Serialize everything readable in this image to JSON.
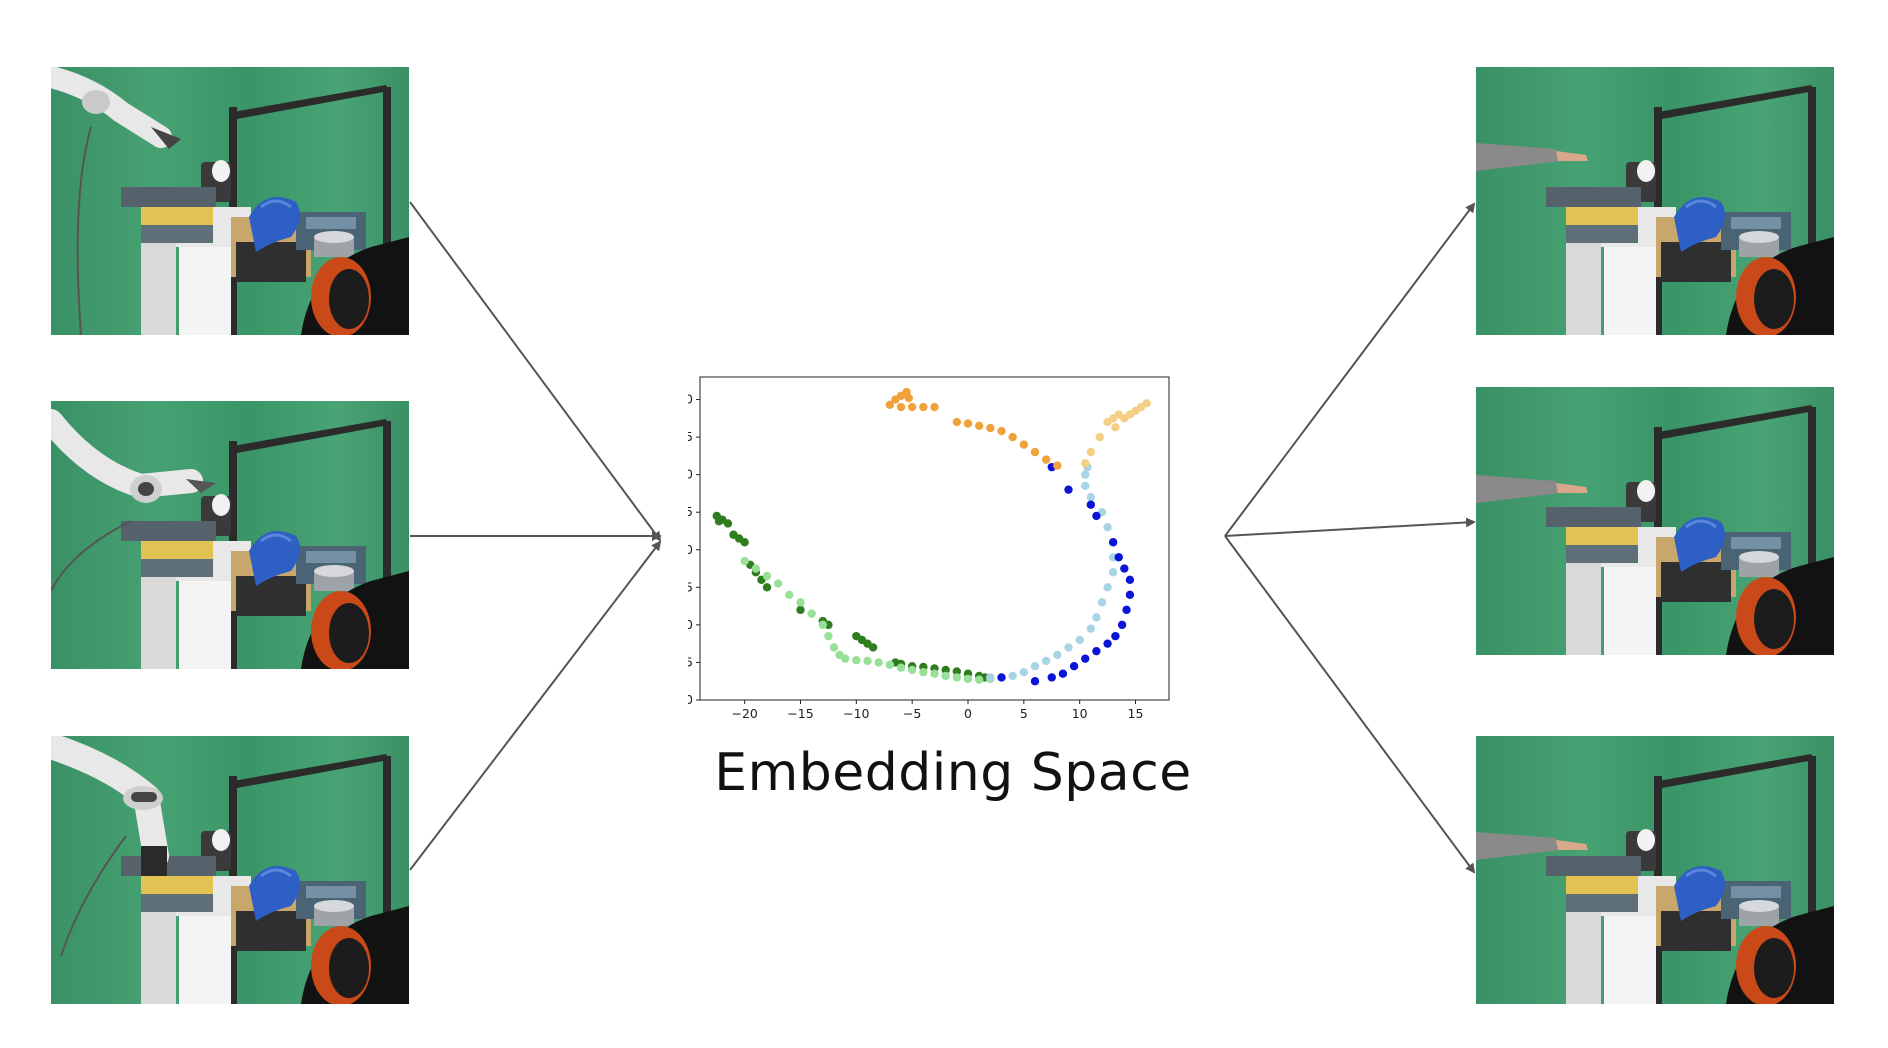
{
  "caption": "Embedding Space",
  "left_panels": [
    {
      "name": "robot-demo-frame-1",
      "agent": "robot-arm"
    },
    {
      "name": "robot-demo-frame-2",
      "agent": "robot-arm"
    },
    {
      "name": "robot-demo-frame-3",
      "agent": "robot-arm"
    }
  ],
  "right_panels": [
    {
      "name": "human-demo-frame-1",
      "agent": "human-arm"
    },
    {
      "name": "human-demo-frame-2",
      "agent": "human-arm"
    },
    {
      "name": "human-demo-frame-3",
      "agent": "human-arm"
    }
  ],
  "colors": {
    "background_green": "#3f9a6c",
    "dark_green": "#2e7d1f",
    "light_green": "#98e098",
    "dark_blue": "#0a14d6",
    "light_blue": "#a8d4e6",
    "orange": "#f0a23a",
    "light_orange": "#f5cf86",
    "arrow": "#555555"
  },
  "chart_data": {
    "type": "scatter",
    "xlim": [
      -24,
      18
    ],
    "ylim": [
      -20,
      23
    ],
    "x_ticks": [
      -20,
      -15,
      -10,
      -5,
      0,
      5,
      10,
      15
    ],
    "y_ticks": [
      20,
      15,
      10,
      5,
      0,
      -5,
      -10,
      -15,
      -20
    ],
    "x_tick_labels": [
      "−20",
      "−15",
      "−10",
      "−5",
      "0",
      "5",
      "10",
      "15"
    ],
    "y_tick_labels": [
      "20",
      "15",
      "10",
      "5",
      "0",
      "−5",
      "−10",
      "−15",
      "−20"
    ],
    "grid": false,
    "series": [
      {
        "color": "#2e7d1f",
        "points": [
          [
            -22.5,
            4.5
          ],
          [
            -22,
            4
          ],
          [
            -21.5,
            3.5
          ],
          [
            -22.3,
            3.8
          ],
          [
            -21,
            2
          ],
          [
            -20.5,
            1.5
          ],
          [
            -20,
            1
          ],
          [
            -19.5,
            -2
          ],
          [
            -19,
            -3
          ],
          [
            -18.5,
            -4
          ],
          [
            -18,
            -5
          ],
          [
            -15,
            -8
          ],
          [
            -13,
            -9.5
          ],
          [
            -12.5,
            -10
          ],
          [
            -10,
            -11.5
          ],
          [
            -9.5,
            -12
          ],
          [
            -9,
            -12.5
          ],
          [
            -8.5,
            -13
          ],
          [
            -6.5,
            -15
          ],
          [
            -6,
            -15.2
          ],
          [
            -5,
            -15.5
          ],
          [
            -4,
            -15.6
          ],
          [
            -3,
            -15.8
          ],
          [
            -2,
            -16
          ],
          [
            -1,
            -16.2
          ],
          [
            0,
            -16.5
          ],
          [
            1,
            -16.8
          ],
          [
            1.5,
            -17
          ]
        ]
      },
      {
        "color": "#98e098",
        "points": [
          [
            -20,
            -1.5
          ],
          [
            -19,
            -2.5
          ],
          [
            -18,
            -3.5
          ],
          [
            -17,
            -4.5
          ],
          [
            -16,
            -6
          ],
          [
            -15,
            -7
          ],
          [
            -14,
            -8.5
          ],
          [
            -13,
            -10
          ],
          [
            -12.5,
            -11.5
          ],
          [
            -12,
            -13
          ],
          [
            -11.5,
            -14
          ],
          [
            -11,
            -14.5
          ],
          [
            -10,
            -14.7
          ],
          [
            -9,
            -14.8
          ],
          [
            -8,
            -15
          ],
          [
            -7,
            -15.3
          ],
          [
            -6,
            -15.7
          ],
          [
            -5,
            -16
          ],
          [
            -4,
            -16.3
          ],
          [
            -3,
            -16.5
          ],
          [
            -2,
            -16.8
          ],
          [
            -1,
            -17
          ],
          [
            0,
            -17.2
          ],
          [
            1,
            -17.3
          ],
          [
            2,
            -17.2
          ]
        ]
      },
      {
        "color": "#a8d4e6",
        "points": [
          [
            2,
            -17
          ],
          [
            3,
            -17
          ],
          [
            4,
            -16.8
          ],
          [
            5,
            -16.3
          ],
          [
            6,
            -15.5
          ],
          [
            7,
            -14.8
          ],
          [
            8,
            -14
          ],
          [
            9,
            -13
          ],
          [
            10,
            -12
          ],
          [
            11,
            -10.5
          ],
          [
            11.5,
            -9
          ],
          [
            12,
            -7
          ],
          [
            12.5,
            -5
          ],
          [
            13,
            -3
          ],
          [
            13,
            -1
          ],
          [
            13,
            1
          ],
          [
            12.5,
            3
          ],
          [
            12,
            5
          ],
          [
            11,
            7
          ],
          [
            10.5,
            8.5
          ],
          [
            10.5,
            10
          ],
          [
            10.7,
            11
          ]
        ]
      },
      {
        "color": "#0a14d6",
        "points": [
          [
            7.5,
            11
          ],
          [
            9,
            8
          ],
          [
            11,
            6
          ],
          [
            11.5,
            4.5
          ],
          [
            13,
            1
          ],
          [
            13.5,
            -1
          ],
          [
            14,
            -2.5
          ],
          [
            14.5,
            -4
          ],
          [
            14.5,
            -6
          ],
          [
            14.2,
            -8
          ],
          [
            13.8,
            -10
          ],
          [
            13.2,
            -11.5
          ],
          [
            12.5,
            -12.5
          ],
          [
            11.5,
            -13.5
          ],
          [
            10.5,
            -14.5
          ],
          [
            9.5,
            -15.5
          ],
          [
            8.5,
            -16.5
          ],
          [
            7.5,
            -17
          ],
          [
            6,
            -17.5
          ],
          [
            3,
            -17
          ]
        ]
      },
      {
        "color": "#f0a23a",
        "points": [
          [
            -6.5,
            20
          ],
          [
            -6,
            20.5
          ],
          [
            -5.5,
            21
          ],
          [
            -5.3,
            20.2
          ],
          [
            -7,
            19.3
          ],
          [
            -6,
            19
          ],
          [
            -5,
            19
          ],
          [
            -4,
            19
          ],
          [
            -3,
            19
          ],
          [
            -1,
            17
          ],
          [
            0,
            16.8
          ],
          [
            1,
            16.5
          ],
          [
            2,
            16.2
          ],
          [
            3,
            15.8
          ],
          [
            4,
            15
          ],
          [
            5,
            14
          ],
          [
            6,
            13
          ],
          [
            7,
            12
          ],
          [
            8,
            11.2
          ]
        ]
      },
      {
        "color": "#f5cf86",
        "points": [
          [
            10.5,
            11.5
          ],
          [
            11,
            13
          ],
          [
            11.8,
            15
          ],
          [
            13,
            17.5
          ],
          [
            13.5,
            18
          ],
          [
            14,
            17.5
          ],
          [
            14.5,
            18
          ],
          [
            15,
            18.5
          ],
          [
            15.5,
            19
          ],
          [
            16,
            19.5
          ],
          [
            13.2,
            16.3
          ],
          [
            12.5,
            17
          ]
        ]
      }
    ]
  }
}
